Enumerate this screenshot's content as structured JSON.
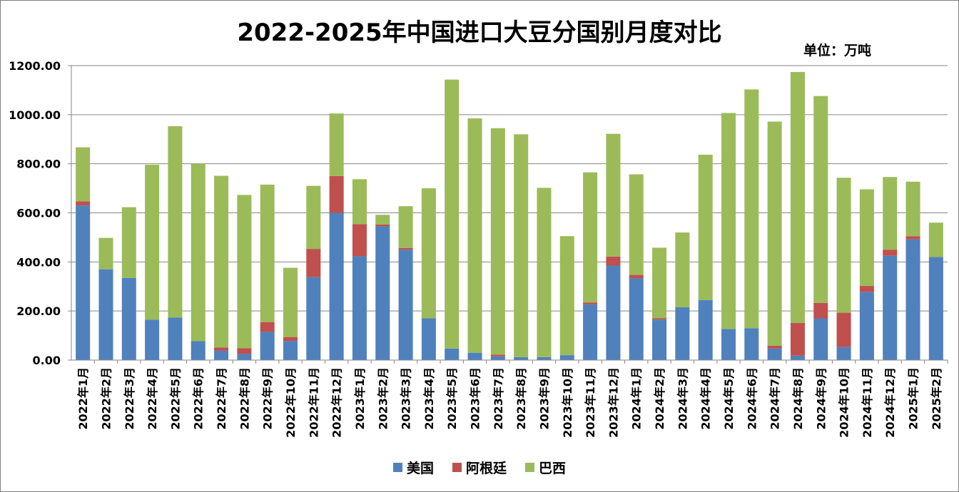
{
  "chart_data": {
    "type": "bar",
    "stacked": true,
    "title": "2022-2025年中国进口大豆分国别月度对比",
    "unit_label": "单位：万吨",
    "ylim": [
      0,
      1200
    ],
    "yticks": [
      "0.00",
      "200.00",
      "400.00",
      "600.00",
      "800.00",
      "1000.00",
      "1200.00"
    ],
    "grid": true,
    "legend_position": "bottom",
    "categories": [
      "2022年1月",
      "2022年2月",
      "2022年3月",
      "2022年4月",
      "2022年5月",
      "2022年6月",
      "2022年7月",
      "2022年8月",
      "2022年9月",
      "2022年10月",
      "2022年11月",
      "2022年12月",
      "2023年1月",
      "2023年2月",
      "2023年3月",
      "2023年4月",
      "2023年5月",
      "2023年6月",
      "2023年7月",
      "2023年8月",
      "2023年9月",
      "2023年10月",
      "2023年11月",
      "2023年12月",
      "2024年1月",
      "2024年2月",
      "2024年3月",
      "2024年4月",
      "2024年5月",
      "2024年6月",
      "2024年7月",
      "2024年8月",
      "2024年9月",
      "2024年10月",
      "2024年11月",
      "2024年12月",
      "2025年1月",
      "2025年2月"
    ],
    "series": [
      {
        "name": "美国",
        "color": "#4f81bd",
        "values": [
          630,
          370,
          335,
          165,
          173,
          77,
          38,
          25,
          115,
          78,
          338,
          600,
          423,
          545,
          450,
          170,
          47,
          30,
          15,
          12,
          12,
          20,
          227,
          385,
          333,
          165,
          215,
          245,
          127,
          130,
          47,
          18,
          170,
          53,
          277,
          425,
          492,
          420
        ]
      },
      {
        "name": "阿根廷",
        "color": "#c0504d",
        "values": [
          17,
          0,
          0,
          0,
          0,
          0,
          13,
          23,
          40,
          16,
          115,
          150,
          131,
          7,
          7,
          0,
          0,
          0,
          7,
          0,
          0,
          0,
          8,
          37,
          14,
          5,
          0,
          0,
          0,
          0,
          12,
          133,
          63,
          140,
          25,
          25,
          13,
          0
        ]
      },
      {
        "name": "巴西",
        "color": "#9bbb59",
        "values": [
          220,
          128,
          288,
          631,
          780,
          723,
          700,
          625,
          560,
          282,
          257,
          255,
          183,
          40,
          170,
          530,
          1096,
          955,
          923,
          908,
          690,
          485,
          530,
          500,
          410,
          288,
          305,
          592,
          880,
          973,
          913,
          1023,
          843,
          550,
          394,
          296,
          222,
          140
        ]
      }
    ]
  }
}
